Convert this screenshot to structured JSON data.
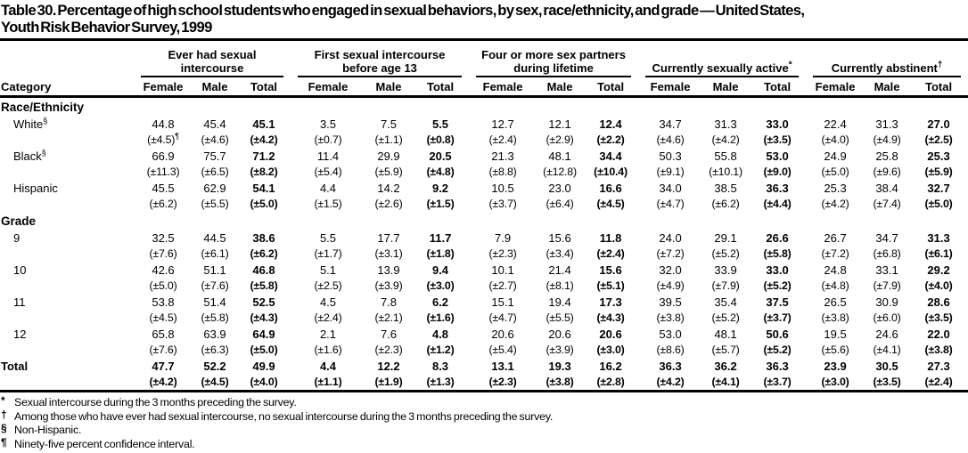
{
  "title": {
    "line1": "Table 30. Percentage of high school students who engaged in sexual behaviors, by sex, race/ethnicity, and grade — United States,",
    "line2": "Youth Risk Behavior Survey, 1999"
  },
  "table": {
    "category_label": "Category",
    "sub_headers": [
      "Female",
      "Male",
      "Total"
    ],
    "groups": [
      {
        "label": "Ever had sexual intercourse",
        "sup": ""
      },
      {
        "label": "First sexual intercourse before age 13",
        "sup": ""
      },
      {
        "label": "Four or more sex partners during lifetime",
        "sup": ""
      },
      {
        "label": "Currently sexually active",
        "sup": "*"
      },
      {
        "label": "Currently abstinent",
        "sup": "†"
      }
    ],
    "rows": [
      {
        "type": "section",
        "label": "Race/Ethnicity"
      },
      {
        "type": "data",
        "label": "White",
        "sup": "§",
        "indent": true,
        "bold": false,
        "values": [
          "44.8",
          "45.4",
          "45.1",
          "3.5",
          "7.5",
          "5.5",
          "12.7",
          "12.1",
          "12.4",
          "34.7",
          "31.3",
          "33.0",
          "22.4",
          "31.3",
          "27.0"
        ],
        "ci": [
          "(±4.5)¶",
          "(±4.6)",
          "(±4.2)",
          "(±0.7)",
          "(±1.1)",
          "(±0.8)",
          "(±2.4)",
          "(±2.9)",
          "(±2.2)",
          "(±4.6)",
          "(±4.2)",
          "(±3.5)",
          "(±4.0)",
          "(±4.9)",
          "(±2.5)"
        ]
      },
      {
        "type": "data",
        "label": "Black",
        "sup": "§",
        "indent": true,
        "bold": false,
        "values": [
          "66.9",
          "75.7",
          "71.2",
          "11.4",
          "29.9",
          "20.5",
          "21.3",
          "48.1",
          "34.4",
          "50.3",
          "55.8",
          "53.0",
          "24.9",
          "25.8",
          "25.3"
        ],
        "ci": [
          "(±11.3)",
          "(±6.5)",
          "(±8.2)",
          "(±5.4)",
          "(±5.9)",
          "(±4.8)",
          "(±8.8)",
          "(±12.8)",
          "(±10.4)",
          "(±9.1)",
          "(±10.1)",
          "(±9.0)",
          "(±5.0)",
          "(±9.6)",
          "(±5.9)"
        ]
      },
      {
        "type": "data",
        "label": "Hispanic",
        "sup": "",
        "indent": true,
        "bold": false,
        "values": [
          "45.5",
          "62.9",
          "54.1",
          "4.4",
          "14.2",
          "9.2",
          "10.5",
          "23.0",
          "16.6",
          "34.0",
          "38.5",
          "36.3",
          "25.3",
          "38.4",
          "32.7"
        ],
        "ci": [
          "(±6.2)",
          "(±5.5)",
          "(±5.0)",
          "(±1.5)",
          "(±2.6)",
          "(±1.5)",
          "(±3.7)",
          "(±6.4)",
          "(±4.5)",
          "(±4.7)",
          "(±6.2)",
          "(±4.4)",
          "(±4.2)",
          "(±7.4)",
          "(±5.0)"
        ]
      },
      {
        "type": "section",
        "label": "Grade"
      },
      {
        "type": "data",
        "label": "9",
        "sup": "",
        "indent": true,
        "bold": false,
        "values": [
          "32.5",
          "44.5",
          "38.6",
          "5.5",
          "17.7",
          "11.7",
          "7.9",
          "15.6",
          "11.8",
          "24.0",
          "29.1",
          "26.6",
          "26.7",
          "34.7",
          "31.3"
        ],
        "ci": [
          "(±7.6)",
          "(±6.1)",
          "(±6.2)",
          "(±1.7)",
          "(±3.1)",
          "(±1.8)",
          "(±2.3)",
          "(±3.4)",
          "(±2.4)",
          "(±7.2)",
          "(±5.2)",
          "(±5.8)",
          "(±7.2)",
          "(±6.8)",
          "(±6.1)"
        ]
      },
      {
        "type": "data",
        "label": "10",
        "sup": "",
        "indent": true,
        "bold": false,
        "values": [
          "42.6",
          "51.1",
          "46.8",
          "5.1",
          "13.9",
          "9.4",
          "10.1",
          "21.4",
          "15.6",
          "32.0",
          "33.9",
          "33.0",
          "24.8",
          "33.1",
          "29.2"
        ],
        "ci": [
          "(±5.0)",
          "(±7.6)",
          "(±5.8)",
          "(±2.5)",
          "(±3.9)",
          "(±3.0)",
          "(±2.7)",
          "(±8.1)",
          "(±5.1)",
          "(±4.9)",
          "(±7.9)",
          "(±5.2)",
          "(±4.8)",
          "(±7.9)",
          "(±4.0)"
        ]
      },
      {
        "type": "data",
        "label": "11",
        "sup": "",
        "indent": true,
        "bold": false,
        "values": [
          "53.8",
          "51.4",
          "52.5",
          "4.5",
          "7.8",
          "6.2",
          "15.1",
          "19.4",
          "17.3",
          "39.5",
          "35.4",
          "37.5",
          "26.5",
          "30.9",
          "28.6"
        ],
        "ci": [
          "(±4.5)",
          "(±5.8)",
          "(±4.3)",
          "(±2.4)",
          "(±2.1)",
          "(±1.6)",
          "(±4.7)",
          "(±5.5)",
          "(±4.3)",
          "(±3.8)",
          "(±5.2)",
          "(±3.7)",
          "(±3.8)",
          "(±6.0)",
          "(±3.5)"
        ]
      },
      {
        "type": "data",
        "label": "12",
        "sup": "",
        "indent": true,
        "bold": false,
        "values": [
          "65.8",
          "63.9",
          "64.9",
          "2.1",
          "7.6",
          "4.8",
          "20.6",
          "20.6",
          "20.6",
          "53.0",
          "48.1",
          "50.6",
          "19.5",
          "24.6",
          "22.0"
        ],
        "ci": [
          "(±7.6)",
          "(±6.3)",
          "(±5.0)",
          "(±1.6)",
          "(±2.3)",
          "(±1.2)",
          "(±5.4)",
          "(±3.9)",
          "(±3.0)",
          "(±8.6)",
          "(±5.7)",
          "(±5.2)",
          "(±5.6)",
          "(±4.1)",
          "(±3.8)"
        ]
      },
      {
        "type": "data",
        "label": "Total",
        "sup": "",
        "indent": false,
        "bold": true,
        "values": [
          "47.7",
          "52.2",
          "49.9",
          "4.4",
          "12.2",
          "8.3",
          "13.1",
          "19.3",
          "16.2",
          "36.3",
          "36.2",
          "36.3",
          "23.9",
          "30.5",
          "27.3"
        ],
        "ci": [
          "(±4.2)",
          "(±4.5)",
          "(±4.0)",
          "(±1.1)",
          "(±1.9)",
          "(±1.3)",
          "(±2.3)",
          "(±3.8)",
          "(±2.8)",
          "(±4.2)",
          "(±4.1)",
          "(±3.7)",
          "(±3.0)",
          "(±3.5)",
          "(±2.4)"
        ]
      }
    ]
  },
  "footnotes": [
    {
      "marker": "*",
      "text": "Sexual intercourse during the 3 months preceding the survey."
    },
    {
      "marker": "†",
      "text": "Among those who have ever had sexual intercourse, no sexual intercourse during the 3 months preceding the survey."
    },
    {
      "marker": "§",
      "text": "Non-Hispanic."
    },
    {
      "marker": "¶",
      "text": "Ninety-five percent confidence interval."
    }
  ],
  "colors": {
    "text": "#000000",
    "background": "#ffffff",
    "rule": "#000000"
  }
}
